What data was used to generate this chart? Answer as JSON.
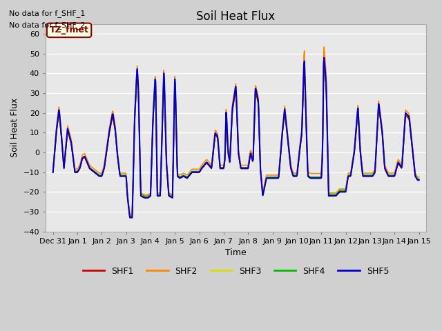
{
  "title": "Soil Heat Flux",
  "ylabel": "Soil Heat Flux",
  "xlabel": "Time",
  "annotation1": "No data for f_SHF_1",
  "annotation2": "No data for f_SHF_2",
  "tz_label": "TZ_fmet",
  "ylim": [
    -40,
    65
  ],
  "yticks": [
    -40,
    -30,
    -20,
    -10,
    0,
    10,
    20,
    30,
    40,
    50,
    60
  ],
  "colors": {
    "SHF1": "#cc0000",
    "SHF2": "#ff8800",
    "SHF3": "#dddd00",
    "SHF4": "#00bb00",
    "SHF5": "#0000cc"
  },
  "legend_labels": [
    "SHF1",
    "SHF2",
    "SHF3",
    "SHF4",
    "SHF5"
  ],
  "xtick_labels": [
    "Dec 31",
    "Jan 1",
    "Jan 2",
    "Jan 3",
    "Jan 4",
    "Jan 5",
    "Jan 6",
    "Jan 7",
    "Jan 8",
    "Jan 9",
    "Jan 10",
    "Jan 11",
    "Jan 12",
    "Jan 13",
    "Jan 14",
    "Jan 15"
  ]
}
